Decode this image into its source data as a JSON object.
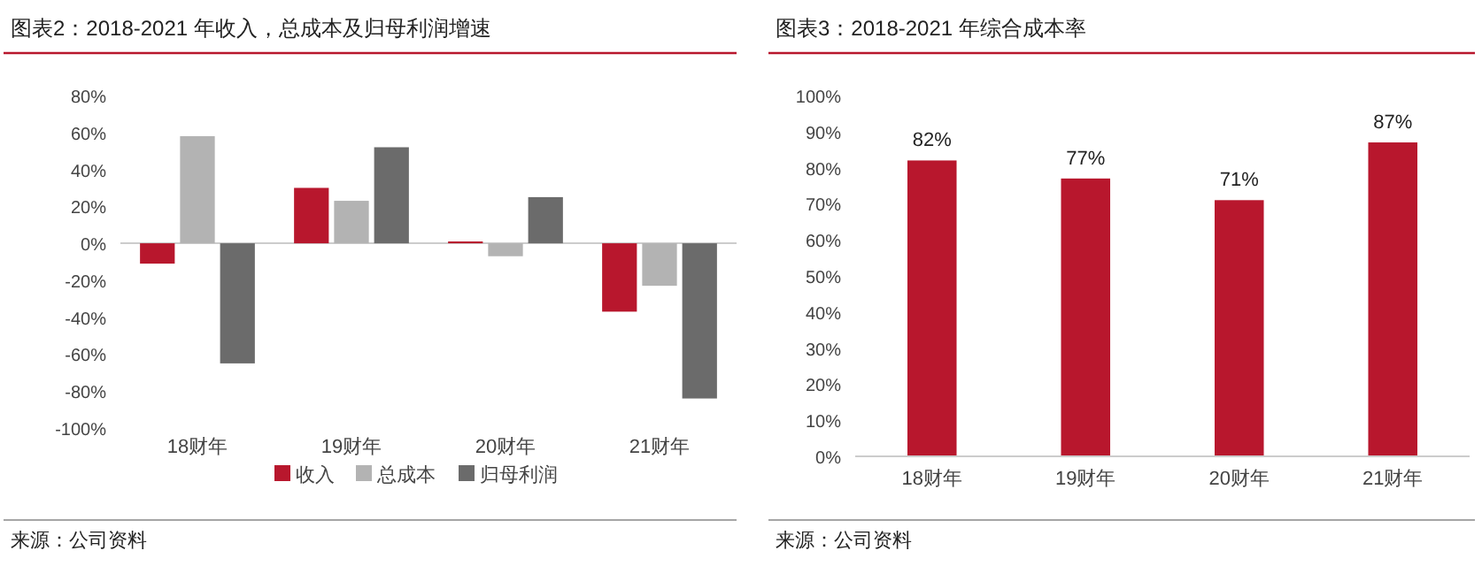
{
  "chart_data": [
    {
      "type": "bar",
      "title": "图表2：2018-2021 年收入，总成本及归母利润增速",
      "categories": [
        "18财年",
        "19财年",
        "20财年",
        "21财年"
      ],
      "series": [
        {
          "name": "收入",
          "color": "#b8172d",
          "values": [
            -11,
            30,
            1,
            -37
          ]
        },
        {
          "name": "总成本",
          "color": "#b3b3b3",
          "values": [
            58,
            23,
            -7,
            -23
          ]
        },
        {
          "name": "归母利润",
          "color": "#6b6b6b",
          "values": [
            -65,
            52,
            25,
            -84
          ]
        }
      ],
      "ylim": [
        -100,
        80
      ],
      "yticks": [
        {
          "value": -100,
          "label": "-100%"
        },
        {
          "value": -80,
          "label": "-80%"
        },
        {
          "value": -60,
          "label": "-60%"
        },
        {
          "value": -40,
          "label": "-40%"
        },
        {
          "value": -20,
          "label": "-20%"
        },
        {
          "value": 0,
          "label": "0%"
        },
        {
          "value": 20,
          "label": "20%"
        },
        {
          "value": 40,
          "label": "40%"
        },
        {
          "value": 60,
          "label": "60%"
        },
        {
          "value": 80,
          "label": "80%"
        }
      ],
      "legend": "bottom",
      "grid": false,
      "ref_lines": [
        {
          "axis": "y",
          "value": 0,
          "color": "#cccccc"
        }
      ],
      "annotations": [
        "来源：公司资料"
      ]
    },
    {
      "type": "bar",
      "title": "图表3：2018-2021 年综合成本率",
      "categories": [
        "18财年",
        "19财年",
        "20财年",
        "21财年"
      ],
      "values": [
        82,
        77,
        71,
        87
      ],
      "color": "#b8172d",
      "value_labels": [
        "82%",
        "77%",
        "71%",
        "87%"
      ],
      "ylim": [
        0,
        100
      ],
      "yticks": [
        {
          "value": 0,
          "label": "0%"
        },
        {
          "value": 10,
          "label": "10%"
        },
        {
          "value": 20,
          "label": "20%"
        },
        {
          "value": 30,
          "label": "30%"
        },
        {
          "value": 40,
          "label": "40%"
        },
        {
          "value": 50,
          "label": "50%"
        },
        {
          "value": 60,
          "label": "60%"
        },
        {
          "value": 70,
          "label": "70%"
        },
        {
          "value": 80,
          "label": "80%"
        },
        {
          "value": 90,
          "label": "90%"
        },
        {
          "value": 100,
          "label": "100%"
        }
      ],
      "grid": false,
      "annotations": [
        "来源：公司资料"
      ]
    }
  ]
}
